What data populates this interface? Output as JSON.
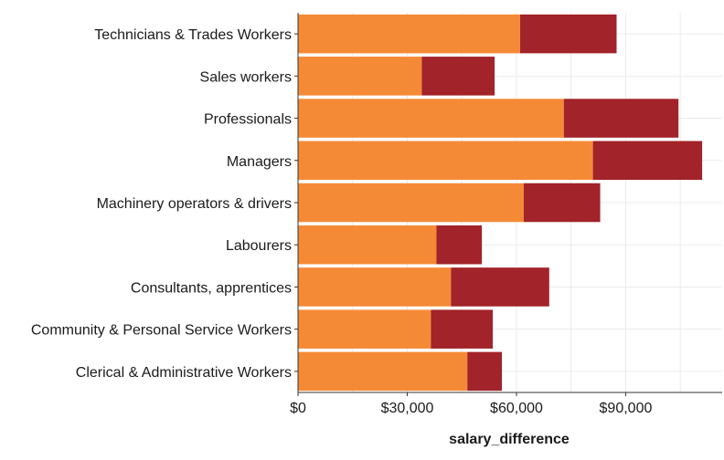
{
  "chart_data": {
    "type": "bar",
    "orientation": "horizontal",
    "stacked": true,
    "categories": [
      "Technicians & Trades Workers",
      "Sales workers",
      "Professionals",
      "Managers",
      "Machinery operators & drivers",
      "Labourers",
      "Consultants, apprentices ",
      "Community & Personal Service Workers",
      "Clerical & Administrative Workers"
    ],
    "series": [
      {
        "color": "#F58A36",
        "values": [
          61000,
          34000,
          73000,
          81000,
          62000,
          38000,
          42000,
          36500,
          46500
        ]
      },
      {
        "color": "#A22329",
        "values": [
          26500,
          20000,
          31500,
          30000,
          21000,
          12500,
          27000,
          17000,
          9500
        ]
      }
    ],
    "xlabel": "salary_difference",
    "xlim": [
      0,
      116500
    ],
    "x_ticks": [
      0,
      30000,
      60000,
      90000
    ],
    "x_tick_labels": [
      "$0",
      "$30,000",
      "$60,000",
      "$90,000"
    ],
    "grid": true,
    "gridline_color": "#ebebeb",
    "axis_color": "#333333"
  }
}
